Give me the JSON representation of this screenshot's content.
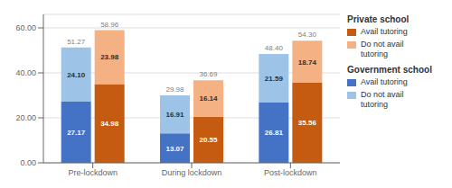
{
  "chart_data": {
    "type": "bar",
    "stacked": true,
    "data_labels": true,
    "legend": "upper right",
    "grid": true,
    "categories": [
      "Pre-lockdown",
      "During lockdown",
      "Post-lockdown"
    ],
    "ylim": [
      0,
      66
    ],
    "yticks": [
      {
        "value": 0,
        "label": "0.00"
      },
      {
        "value": 20,
        "label": "20.00"
      },
      {
        "value": 40,
        "label": "40.00"
      },
      {
        "value": 60,
        "label": "60.00"
      }
    ],
    "stacks": [
      {
        "name": "Government school",
        "totals": [
          51.27,
          29.98,
          48.4
        ],
        "total_labels": [
          "51.27",
          "29.98",
          "48.40"
        ],
        "series": [
          {
            "name": "Avail tutoring",
            "color": "#4472C4",
            "values": [
              27.17,
              13.07,
              26.81
            ],
            "value_labels": [
              "27.17",
              "13.07",
              "26.81"
            ]
          },
          {
            "name": "Do not avail\ntutoring",
            "color": "#9DC3E6",
            "values": [
              24.1,
              16.91,
              21.59
            ],
            "value_labels": [
              "24.10",
              "16.91",
              "21.59"
            ]
          }
        ]
      },
      {
        "name": "Private school",
        "totals": [
          58.96,
          36.69,
          54.3
        ],
        "total_labels": [
          "58.96",
          "36.69",
          "54.30"
        ],
        "series": [
          {
            "name": "Avail tutoring",
            "color": "#C55A11",
            "values": [
              34.98,
              20.55,
              35.56
            ],
            "value_labels": [
              "34.98",
              "20.55",
              "35.56"
            ]
          },
          {
            "name": "Do not avail\ntutoring",
            "color": "#F4B183",
            "values": [
              23.98,
              16.14,
              18.74
            ],
            "value_labels": [
              "23.98",
              "16.14",
              "18.74"
            ]
          }
        ]
      }
    ]
  }
}
